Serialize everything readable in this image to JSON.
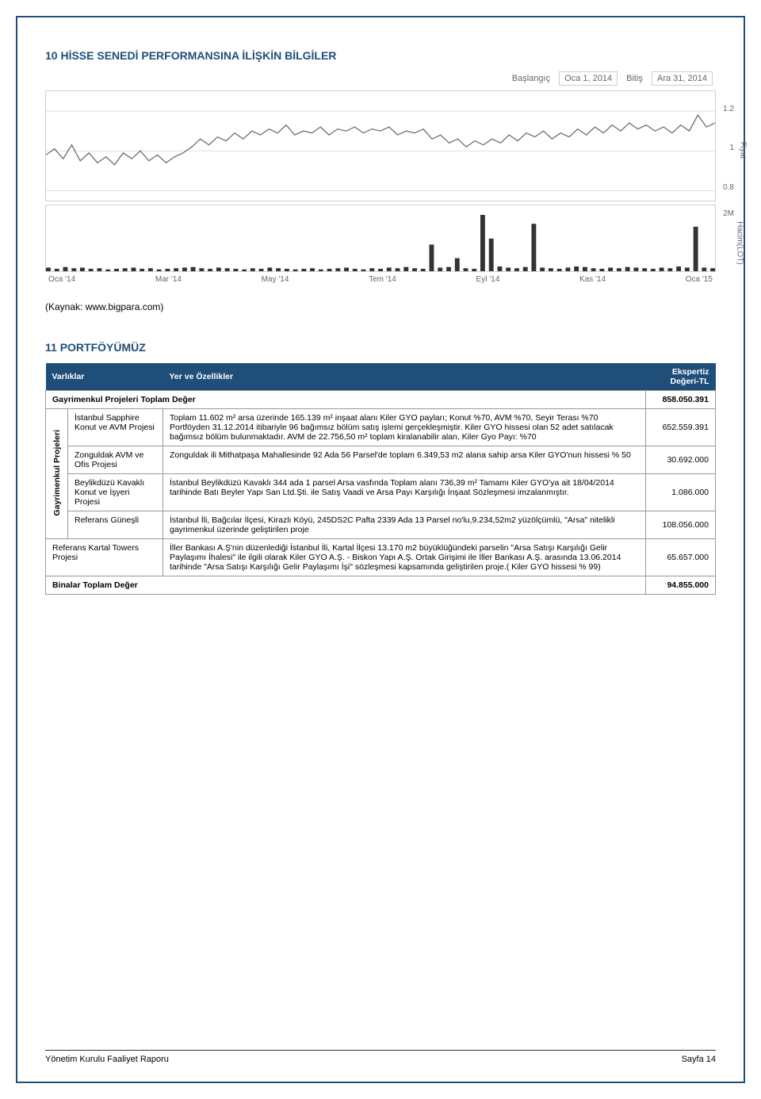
{
  "section10": {
    "title": "10 HİSSE SENEDİ PERFORMANSINA İLİŞKİN BİLGİLER",
    "controls": {
      "start_label": "Başlangıç",
      "start_value": "Oca 1, 2014",
      "end_label": "Bitiş",
      "end_value": "Ara 31, 2014"
    },
    "price_chart": {
      "type": "line",
      "axis_title": "Fiyat",
      "y_ticks": [
        0.8,
        1,
        1.2
      ],
      "ylim": [
        0.75,
        1.3
      ],
      "line_color": "#666666",
      "grid_color": "#e0e0e0",
      "background": "#ffffff",
      "points": [
        0.98,
        1.01,
        0.96,
        1.03,
        0.95,
        0.99,
        0.94,
        0.97,
        0.93,
        0.99,
        0.96,
        1.0,
        0.95,
        0.98,
        0.94,
        0.97,
        0.99,
        1.02,
        1.06,
        1.03,
        1.07,
        1.05,
        1.09,
        1.06,
        1.1,
        1.08,
        1.11,
        1.09,
        1.13,
        1.08,
        1.1,
        1.09,
        1.12,
        1.08,
        1.11,
        1.1,
        1.12,
        1.09,
        1.11,
        1.1,
        1.12,
        1.08,
        1.1,
        1.09,
        1.11,
        1.06,
        1.08,
        1.04,
        1.06,
        1.02,
        1.05,
        1.03,
        1.06,
        1.04,
        1.08,
        1.05,
        1.09,
        1.07,
        1.1,
        1.06,
        1.09,
        1.07,
        1.11,
        1.08,
        1.12,
        1.09,
        1.13,
        1.1,
        1.14,
        1.11,
        1.13,
        1.1,
        1.12,
        1.09,
        1.13,
        1.1,
        1.18,
        1.12,
        1.14
      ]
    },
    "volume_chart": {
      "type": "bar",
      "axis_title": "Hacim(LOT)",
      "x_labels": [
        "Oca '14",
        "Mar '14",
        "May '14",
        "Tem '14",
        "Eyl '14",
        "Kas '14",
        "Oca '15"
      ],
      "bar_color": "#333333",
      "background": "#ffffff",
      "max_label": "2M",
      "bars": [
        0.06,
        0.04,
        0.07,
        0.05,
        0.06,
        0.04,
        0.05,
        0.03,
        0.04,
        0.05,
        0.06,
        0.04,
        0.05,
        0.03,
        0.04,
        0.05,
        0.06,
        0.07,
        0.05,
        0.04,
        0.06,
        0.05,
        0.04,
        0.03,
        0.05,
        0.04,
        0.06,
        0.05,
        0.04,
        0.03,
        0.04,
        0.05,
        0.03,
        0.04,
        0.05,
        0.06,
        0.04,
        0.03,
        0.05,
        0.04,
        0.06,
        0.05,
        0.07,
        0.05,
        0.04,
        0.45,
        0.06,
        0.07,
        0.22,
        0.05,
        0.04,
        0.95,
        0.55,
        0.08,
        0.06,
        0.05,
        0.07,
        0.8,
        0.06,
        0.05,
        0.04,
        0.06,
        0.08,
        0.07,
        0.05,
        0.04,
        0.06,
        0.05,
        0.07,
        0.06,
        0.05,
        0.04,
        0.06,
        0.05,
        0.08,
        0.06,
        0.75,
        0.06,
        0.05
      ]
    },
    "source": "(Kaynak: www.bigpara.com)"
  },
  "section11": {
    "title": "11 PORTFÖYÜMÜZ",
    "headers": {
      "assets": "Varlıklar",
      "features": "Yer ve Özellikler",
      "value": "Ekspertiz Değeri-TL"
    },
    "group1": {
      "label": "Gayrimenkul Projeleri",
      "total_label": "Gayrimenkul Projeleri Toplam Değer",
      "total_value": "858.050.391",
      "rows": [
        {
          "name": "İstanbul Sapphire Konut ve AVM Projesi",
          "desc": "Toplam 11.602 m² arsa üzerinde 165.139 m² inşaat alanı\nKiler GYO payları; Konut %70, AVM %70, Seyir Terası %70\nPortföyden 31.12.2014 itibariyle 96 bağımsız bölüm satış işlemi gerçekleşmiştir. Kiler GYO hissesi olan 52 adet satılacak bağımsız bölüm bulunmaktadır.\nAVM de 22.756,50 m² toplam kiralanabilir alan, Kiler Gyo Payı: %70",
          "value": "652.559.391"
        },
        {
          "name": "Zonguldak AVM ve Ofis Projesi",
          "desc": "Zonguldak ili Mithatpaşa Mahallesinde 92 Ada 56 Parsel'de toplam 6.349,53 m2 alana sahip arsa\nKiler GYO'nun hissesi % 50",
          "value": "30.692.000"
        },
        {
          "name": "Beylikdüzü Kavaklı Konut ve İşyeri Projesi",
          "desc": "İstanbul Beylikdüzü Kavaklı 344 ada 1 parsel Arsa vasfında\nToplam alanı 736,39 m²\nTamamı Kiler GYO'ya ait\n18/04/2014 tarihinde Batı Beyler Yapı San Ltd.Şti. ile Satış Vaadi ve Arsa Payı Karşılığı İnşaat Sözleşmesi imzalanmıştır.",
          "value": "1.086.000"
        },
        {
          "name": "Referans Güneşli",
          "desc": "İstanbul İli, Bağcılar İlçesi, Kirazlı Köyü, 245DS2C Pafta 2339 Ada 13 Parsel no'lu,9.234,52m2 yüzölçümlü, \"Arsa\" nitelikli gayrimenkul üzerinde geliştirilen proje",
          "value": "108.056.000"
        }
      ]
    },
    "group2": {
      "rows": [
        {
          "name": "Referans Kartal Towers Projesi",
          "desc": "İller Bankası A.Ş'nin düzenlediği İstanbul İli, Kartal İlçesi 13.170 m2 büyüklüğündeki parselin \"Arsa Satışı Karşılığı Gelir Paylaşımı İhalesi\" ile ilgili olarak Kiler GYO A.Ş. - Biskon Yapı A.Ş. Ortak Girişimi ile İller Bankası A.Ş. arasında 13.06.2014 tarihinde \"Arsa Satışı Karşılığı Gelir Paylaşımı İşi\" sözleşmesi kapsamında geliştirilen proje.( Kiler GYO hissesi % 99)",
          "value": "65.657.000"
        }
      ],
      "total_label": "Binalar Toplam Değer",
      "total_value": "94.855.000"
    }
  },
  "footer": {
    "left": "Yönetim Kurulu Faaliyet Raporu",
    "right": "Sayfa 14"
  }
}
